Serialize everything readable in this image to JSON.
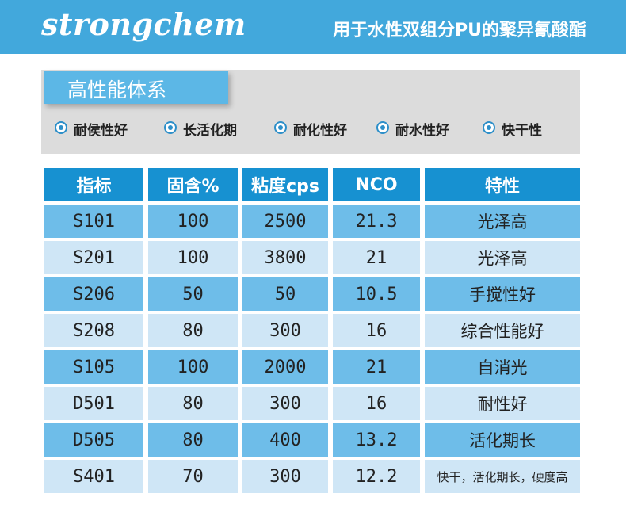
{
  "header": {
    "logo": "strongchem",
    "tagline": "用于水性双组分PU的聚异氰酸酯"
  },
  "features": {
    "title": "高性能体系",
    "items": [
      "耐侯性好",
      "长活化期",
      "耐化性好",
      "耐水性好",
      "快干性"
    ]
  },
  "table": {
    "headers": [
      "指标",
      "固含%",
      "粘度cps",
      "NCO",
      "特性"
    ],
    "rows": [
      [
        "S101",
        "100",
        "2500",
        "21.3",
        "光泽高"
      ],
      [
        "S201",
        "100",
        "3800",
        "21",
        "光泽高"
      ],
      [
        "S206",
        "50",
        "50",
        "10.5",
        "手搅性好"
      ],
      [
        "S208",
        "80",
        "300",
        "16",
        "综合性能好"
      ],
      [
        "S105",
        "100",
        "2000",
        "21",
        "自消光"
      ],
      [
        "D501",
        "80",
        "300",
        "16",
        "耐性好"
      ],
      [
        "D505",
        "80",
        "400",
        "13.2",
        "活化期长"
      ],
      [
        "S401",
        "70",
        "300",
        "12.2",
        "快干，活化期长，硬度高"
      ]
    ]
  },
  "colors": {
    "header_bg": "#42a8dc",
    "table_header_bg": "#1791d1",
    "row_dark": "#6ebde9",
    "row_light": "#cfe6f6",
    "feature_panel_bg": "#dcdcdc"
  }
}
